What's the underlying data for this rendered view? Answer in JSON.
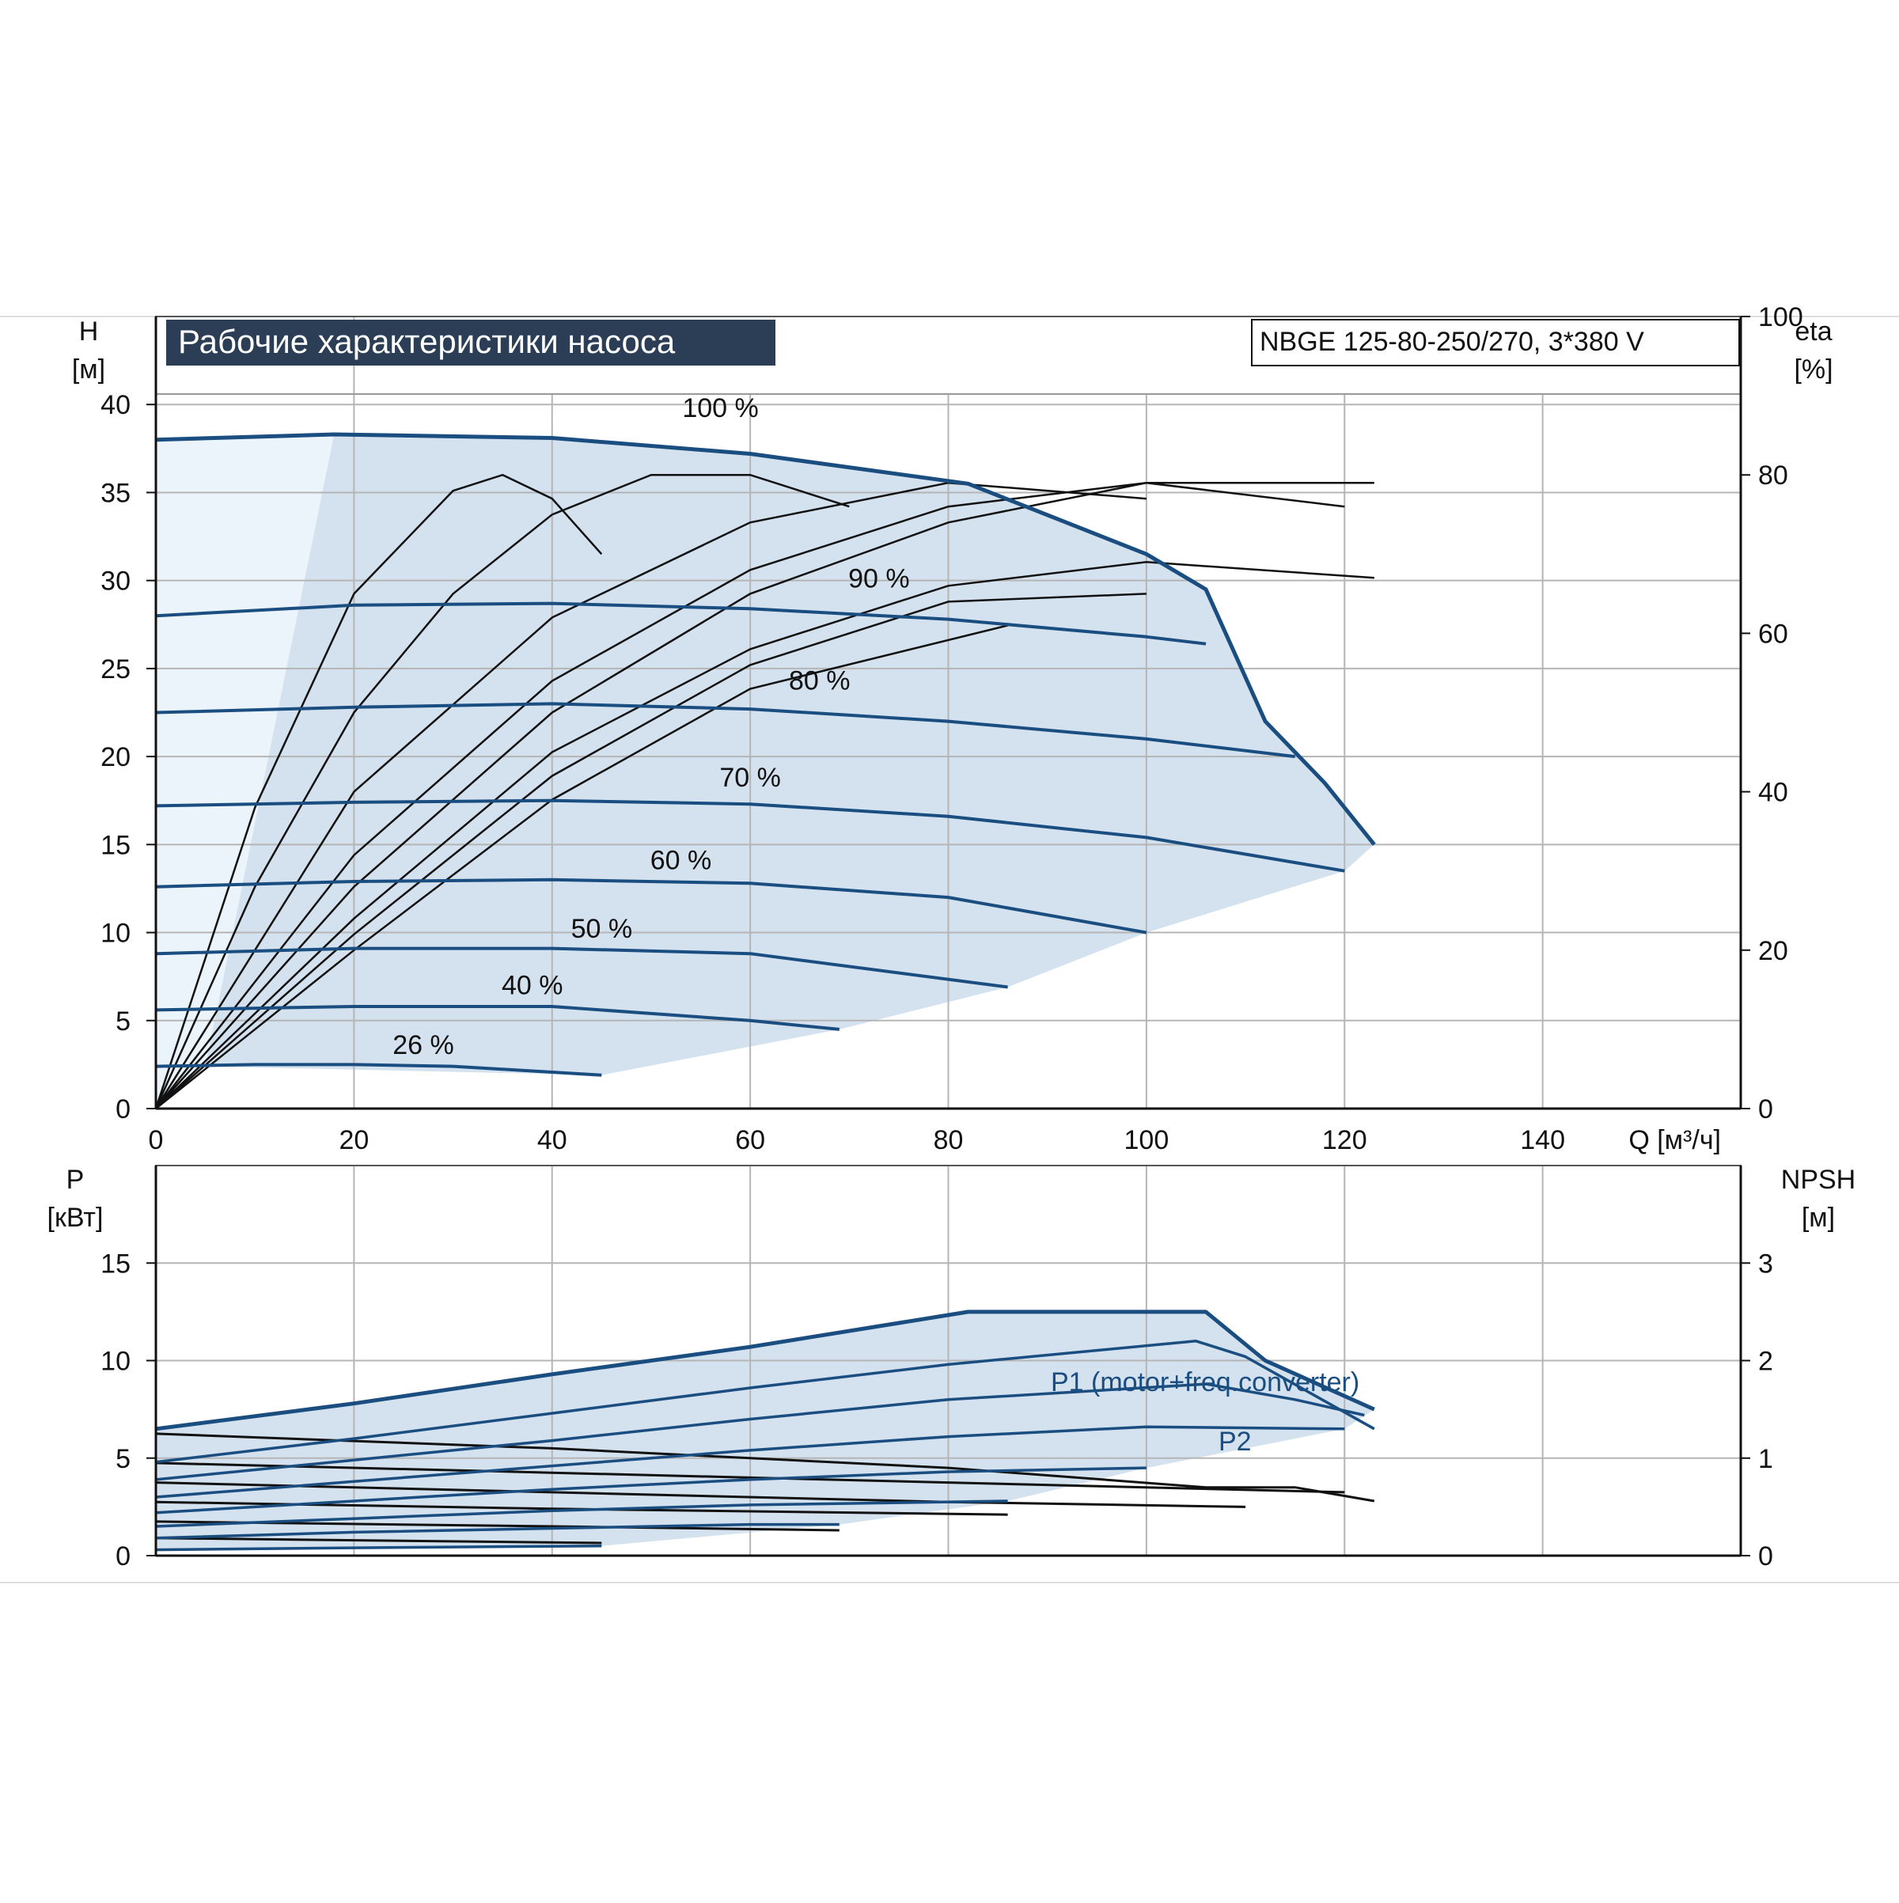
{
  "chart_data": [
    {
      "type": "line",
      "title": "Рабочие характеристики насоса",
      "model_label": "NBGE 125-80-250/270, 3*380 V",
      "ylabel_left": "H",
      "ylabel_left_unit": "[м]",
      "ylabel_right": "eta",
      "ylabel_right_unit": "[%]",
      "xlabel": "Q [м³/ч]",
      "xlim": [
        0,
        160
      ],
      "ylim_left": [
        0,
        45
      ],
      "ylim_right": [
        0,
        100
      ],
      "x_ticks": [
        "0",
        "20",
        "40",
        "60",
        "80",
        "100",
        "120",
        "140"
      ],
      "y_ticks_left": [
        "0",
        "5",
        "10",
        "15",
        "20",
        "25",
        "30",
        "35",
        "40"
      ],
      "y_ticks_right": [
        "0",
        "20",
        "40",
        "60",
        "80",
        "100"
      ],
      "grid": true,
      "colors": {
        "curve": "#1a4d80",
        "fill": "#d4e1ee",
        "fill_light": "#ebf4fb",
        "efficiency": "#111111"
      },
      "series": [
        {
          "name": "100 %",
          "x": [
            0,
            18,
            40,
            60,
            82,
            100,
            106,
            112,
            118,
            123
          ],
          "y": [
            38.0,
            38.3,
            38.1,
            37.2,
            35.5,
            31.5,
            29.5,
            22.0,
            18.5,
            15.0
          ]
        },
        {
          "name": "90 %",
          "x": [
            0,
            20,
            40,
            60,
            80,
            100,
            106
          ],
          "y": [
            28.0,
            28.6,
            28.7,
            28.4,
            27.8,
            26.8,
            26.4
          ]
        },
        {
          "name": "80 %",
          "x": [
            0,
            20,
            40,
            60,
            80,
            100,
            115
          ],
          "y": [
            22.5,
            22.8,
            23.0,
            22.7,
            22.0,
            21.0,
            20.0
          ]
        },
        {
          "name": "70 %",
          "x": [
            0,
            20,
            40,
            60,
            80,
            100,
            120
          ],
          "y": [
            17.2,
            17.4,
            17.5,
            17.3,
            16.6,
            15.4,
            13.5
          ]
        },
        {
          "name": "60 %",
          "x": [
            0,
            20,
            40,
            60,
            80,
            100
          ],
          "y": [
            12.6,
            12.9,
            13.0,
            12.8,
            12.0,
            10.0
          ]
        },
        {
          "name": "50 %",
          "x": [
            0,
            20,
            40,
            60,
            86
          ],
          "y": [
            8.8,
            9.1,
            9.1,
            8.8,
            6.9
          ]
        },
        {
          "name": "40 %",
          "x": [
            0,
            20,
            40,
            60,
            69
          ],
          "y": [
            5.6,
            5.8,
            5.8,
            5.0,
            4.5
          ]
        },
        {
          "name": "26 %",
          "x": [
            0,
            10,
            20,
            30,
            45
          ],
          "y": [
            2.4,
            2.5,
            2.5,
            2.4,
            1.9
          ]
        }
      ],
      "efficiency_curves": [
        {
          "x": [
            0,
            10,
            20,
            30,
            35,
            40,
            45
          ],
          "y": [
            0,
            38,
            65,
            78,
            80,
            77,
            70
          ]
        },
        {
          "x": [
            0,
            10,
            20,
            30,
            40,
            50,
            60,
            70
          ],
          "y": [
            0,
            28,
            50,
            65,
            75,
            80,
            80,
            76
          ]
        },
        {
          "x": [
            0,
            20,
            40,
            60,
            80,
            100
          ],
          "y": [
            0,
            40,
            62,
            74,
            79,
            77
          ]
        },
        {
          "x": [
            0,
            20,
            40,
            60,
            80,
            100,
            120
          ],
          "y": [
            0,
            32,
            54,
            68,
            76,
            79,
            76
          ]
        },
        {
          "x": [
            0,
            20,
            40,
            60,
            80,
            100,
            123
          ],
          "y": [
            0,
            28,
            50,
            65,
            74,
            79,
            79
          ]
        },
        {
          "x": [
            0,
            20,
            40,
            60,
            80,
            100,
            123
          ],
          "y": [
            0,
            24,
            45,
            58,
            66,
            69,
            67
          ]
        },
        {
          "x": [
            0,
            20,
            40,
            60,
            80,
            100
          ],
          "y": [
            0,
            22,
            42,
            56,
            64,
            65
          ]
        },
        {
          "x": [
            0,
            20,
            40,
            60,
            86
          ],
          "y": [
            0,
            20,
            39,
            53,
            61
          ]
        }
      ],
      "operating_area": {
        "x": [
          0,
          18,
          40,
          60,
          82,
          100,
          106,
          112,
          118,
          123,
          120,
          100,
          86,
          69,
          45,
          5,
          0
        ],
        "y": [
          38.0,
          38.3,
          38.1,
          37.2,
          35.5,
          31.5,
          29.5,
          22.0,
          18.5,
          15.0,
          13.5,
          10.0,
          6.9,
          4.5,
          1.9,
          2.4,
          0
        ]
      }
    },
    {
      "type": "line",
      "ylabel_left": "P",
      "ylabel_left_unit": "[кВт]",
      "ylabel_right": "NPSH",
      "ylabel_right_unit": "[м]",
      "xlim": [
        0,
        160
      ],
      "ylim_left": [
        0,
        20
      ],
      "ylim_right": [
        0,
        4
      ],
      "y_ticks_left": [
        "0",
        "5",
        "10",
        "15"
      ],
      "y_ticks_right": [
        "0",
        "1",
        "2",
        "3"
      ],
      "grid": true,
      "label_p1": "P1 (motor+freq.converter)",
      "label_p2": "P2",
      "power_series": [
        {
          "label": "P1",
          "x": [
            0,
            20,
            40,
            60,
            82,
            106,
            112,
            123
          ],
          "y": [
            6.5,
            7.8,
            9.3,
            10.7,
            12.5,
            12.5,
            10.0,
            7.5
          ]
        },
        {
          "label": "P2",
          "x": [
            0,
            20,
            40,
            60,
            80,
            105,
            110,
            123
          ],
          "y": [
            4.8,
            6.0,
            7.3,
            8.6,
            9.8,
            11.0,
            10.2,
            6.5
          ]
        },
        {
          "x": [
            0,
            20,
            40,
            60,
            80,
            106,
            115,
            122
          ],
          "y": [
            3.9,
            4.9,
            5.9,
            7.0,
            8.0,
            8.8,
            8.0,
            7.2
          ]
        },
        {
          "x": [
            0,
            20,
            40,
            60,
            80,
            100,
            120
          ],
          "y": [
            3.0,
            3.8,
            4.6,
            5.4,
            6.1,
            6.6,
            6.5
          ]
        },
        {
          "x": [
            0,
            20,
            40,
            60,
            80,
            100
          ],
          "y": [
            2.2,
            2.8,
            3.4,
            3.9,
            4.3,
            4.5
          ]
        },
        {
          "x": [
            0,
            20,
            40,
            60,
            86
          ],
          "y": [
            1.5,
            1.9,
            2.3,
            2.6,
            2.8
          ]
        },
        {
          "x": [
            0,
            20,
            40,
            60,
            69
          ],
          "y": [
            0.9,
            1.2,
            1.4,
            1.6,
            1.6
          ]
        },
        {
          "x": [
            0,
            20,
            45
          ],
          "y": [
            0.3,
            0.4,
            0.5
          ]
        }
      ],
      "npsh_curves": [
        {
          "x": [
            0,
            40,
            80,
            106,
            115,
            123
          ],
          "y": [
            1.25,
            1.1,
            0.9,
            0.7,
            0.7,
            0.56
          ]
        },
        {
          "x": [
            0,
            40,
            80,
            120
          ],
          "y": [
            0.95,
            0.85,
            0.75,
            0.65
          ]
        },
        {
          "x": [
            0,
            40,
            80,
            110
          ],
          "y": [
            0.75,
            0.65,
            0.55,
            0.5
          ]
        },
        {
          "x": [
            0,
            40,
            86
          ],
          "y": [
            0.55,
            0.48,
            0.42
          ]
        },
        {
          "x": [
            0,
            40,
            69
          ],
          "y": [
            0.35,
            0.3,
            0.26
          ]
        },
        {
          "x": [
            0,
            45
          ],
          "y": [
            0.18,
            0.13
          ]
        }
      ],
      "operating_area": {
        "x": [
          0,
          20,
          40,
          60,
          82,
          106,
          112,
          123,
          120,
          100,
          86,
          69,
          45,
          0
        ],
        "y": [
          6.5,
          7.8,
          9.3,
          10.7,
          12.5,
          12.5,
          10.0,
          7.5,
          6.5,
          4.5,
          2.8,
          1.6,
          0.5,
          0.3
        ]
      }
    }
  ]
}
